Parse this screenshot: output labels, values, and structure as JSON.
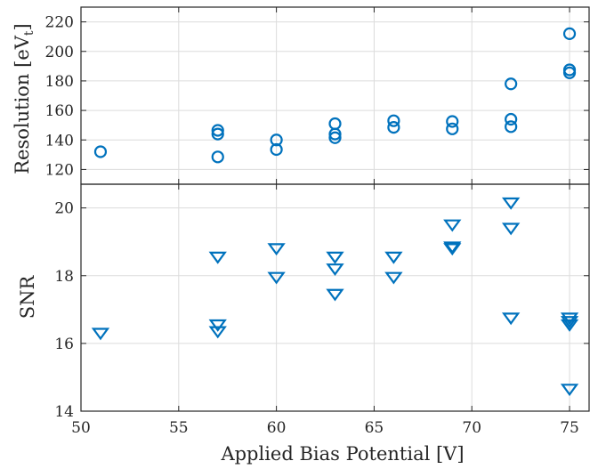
{
  "chart_data": {
    "type": "scatter",
    "shared_x": {
      "label": "Applied Bias Potential [V]",
      "range": [
        50,
        76
      ],
      "ticks": [
        50,
        55,
        60,
        65,
        70,
        75
      ],
      "tick_labels": [
        "50",
        "55",
        "60",
        "65",
        "70",
        "75"
      ]
    },
    "marker_color": "#0072bd",
    "grid": true,
    "panels": [
      {
        "name": "resolution",
        "ylabel": "Resolution [eV",
        "ylabel_sub": "t",
        "ylabel_close": "]",
        "marker": "circle",
        "ylim": [
          110,
          230
        ],
        "yticks": [
          120,
          140,
          160,
          180,
          200,
          220
        ],
        "ytick_labels": [
          "120",
          "140",
          "160",
          "180",
          "200",
          "220"
        ],
        "points": [
          {
            "x": 51,
            "y": 132
          },
          {
            "x": 57,
            "y": 128.5
          },
          {
            "x": 57,
            "y": 144
          },
          {
            "x": 57,
            "y": 146.5
          },
          {
            "x": 60,
            "y": 133.5
          },
          {
            "x": 60,
            "y": 140
          },
          {
            "x": 63,
            "y": 141.5
          },
          {
            "x": 63,
            "y": 144
          },
          {
            "x": 63,
            "y": 151
          },
          {
            "x": 66,
            "y": 148.5
          },
          {
            "x": 66,
            "y": 153
          },
          {
            "x": 69,
            "y": 147.5
          },
          {
            "x": 69,
            "y": 152.5
          },
          {
            "x": 72,
            "y": 149
          },
          {
            "x": 72,
            "y": 154
          },
          {
            "x": 72,
            "y": 178
          },
          {
            "x": 75,
            "y": 185.5
          },
          {
            "x": 75,
            "y": 187.5
          },
          {
            "x": 75,
            "y": 212
          }
        ]
      },
      {
        "name": "snr",
        "ylabel": "SNR",
        "marker": "triangle-down",
        "ylim": [
          14,
          20.7
        ],
        "yticks": [
          14,
          16,
          18,
          20
        ],
        "ytick_labels": [
          "14",
          "16",
          "18",
          "20"
        ],
        "points": [
          {
            "x": 51,
            "y": 16.3
          },
          {
            "x": 57,
            "y": 16.35
          },
          {
            "x": 57,
            "y": 16.55
          },
          {
            "x": 57,
            "y": 18.55
          },
          {
            "x": 60,
            "y": 17.95
          },
          {
            "x": 60,
            "y": 18.8
          },
          {
            "x": 63,
            "y": 17.45
          },
          {
            "x": 63,
            "y": 18.2
          },
          {
            "x": 63,
            "y": 18.55
          },
          {
            "x": 66,
            "y": 17.95
          },
          {
            "x": 66,
            "y": 18.55
          },
          {
            "x": 69,
            "y": 18.8
          },
          {
            "x": 69,
            "y": 18.85
          },
          {
            "x": 69,
            "y": 19.5
          },
          {
            "x": 72,
            "y": 16.75
          },
          {
            "x": 72,
            "y": 19.4
          },
          {
            "x": 72,
            "y": 20.15
          },
          {
            "x": 75,
            "y": 14.65
          },
          {
            "x": 75,
            "y": 16.55
          },
          {
            "x": 75,
            "y": 16.65
          },
          {
            "x": 75,
            "y": 16.75
          }
        ]
      }
    ]
  }
}
